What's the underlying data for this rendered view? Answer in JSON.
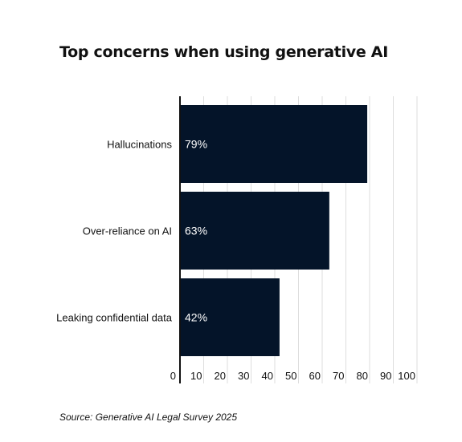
{
  "chart_data": {
    "type": "bar",
    "orientation": "horizontal",
    "title": "Top concerns when using generative AI",
    "source": "Source: Generative AI Legal Survey 2025",
    "categories": [
      "Hallucinations",
      "Over-reliance on AI",
      "Leaking confidential data"
    ],
    "values": [
      79,
      63,
      42
    ],
    "value_labels": [
      "79%",
      "63%",
      "42%"
    ],
    "xlim": [
      0,
      100
    ],
    "xticks": [
      0,
      10,
      20,
      30,
      40,
      50,
      60,
      70,
      80,
      90,
      100
    ],
    "xlabel": "",
    "ylabel": "",
    "grid": "vertical",
    "legend": "none",
    "colors": {
      "bar": "#041429",
      "grid": "#dedede",
      "axis": "#111111",
      "text": "#111111",
      "bar_label": "#ffffff"
    }
  }
}
